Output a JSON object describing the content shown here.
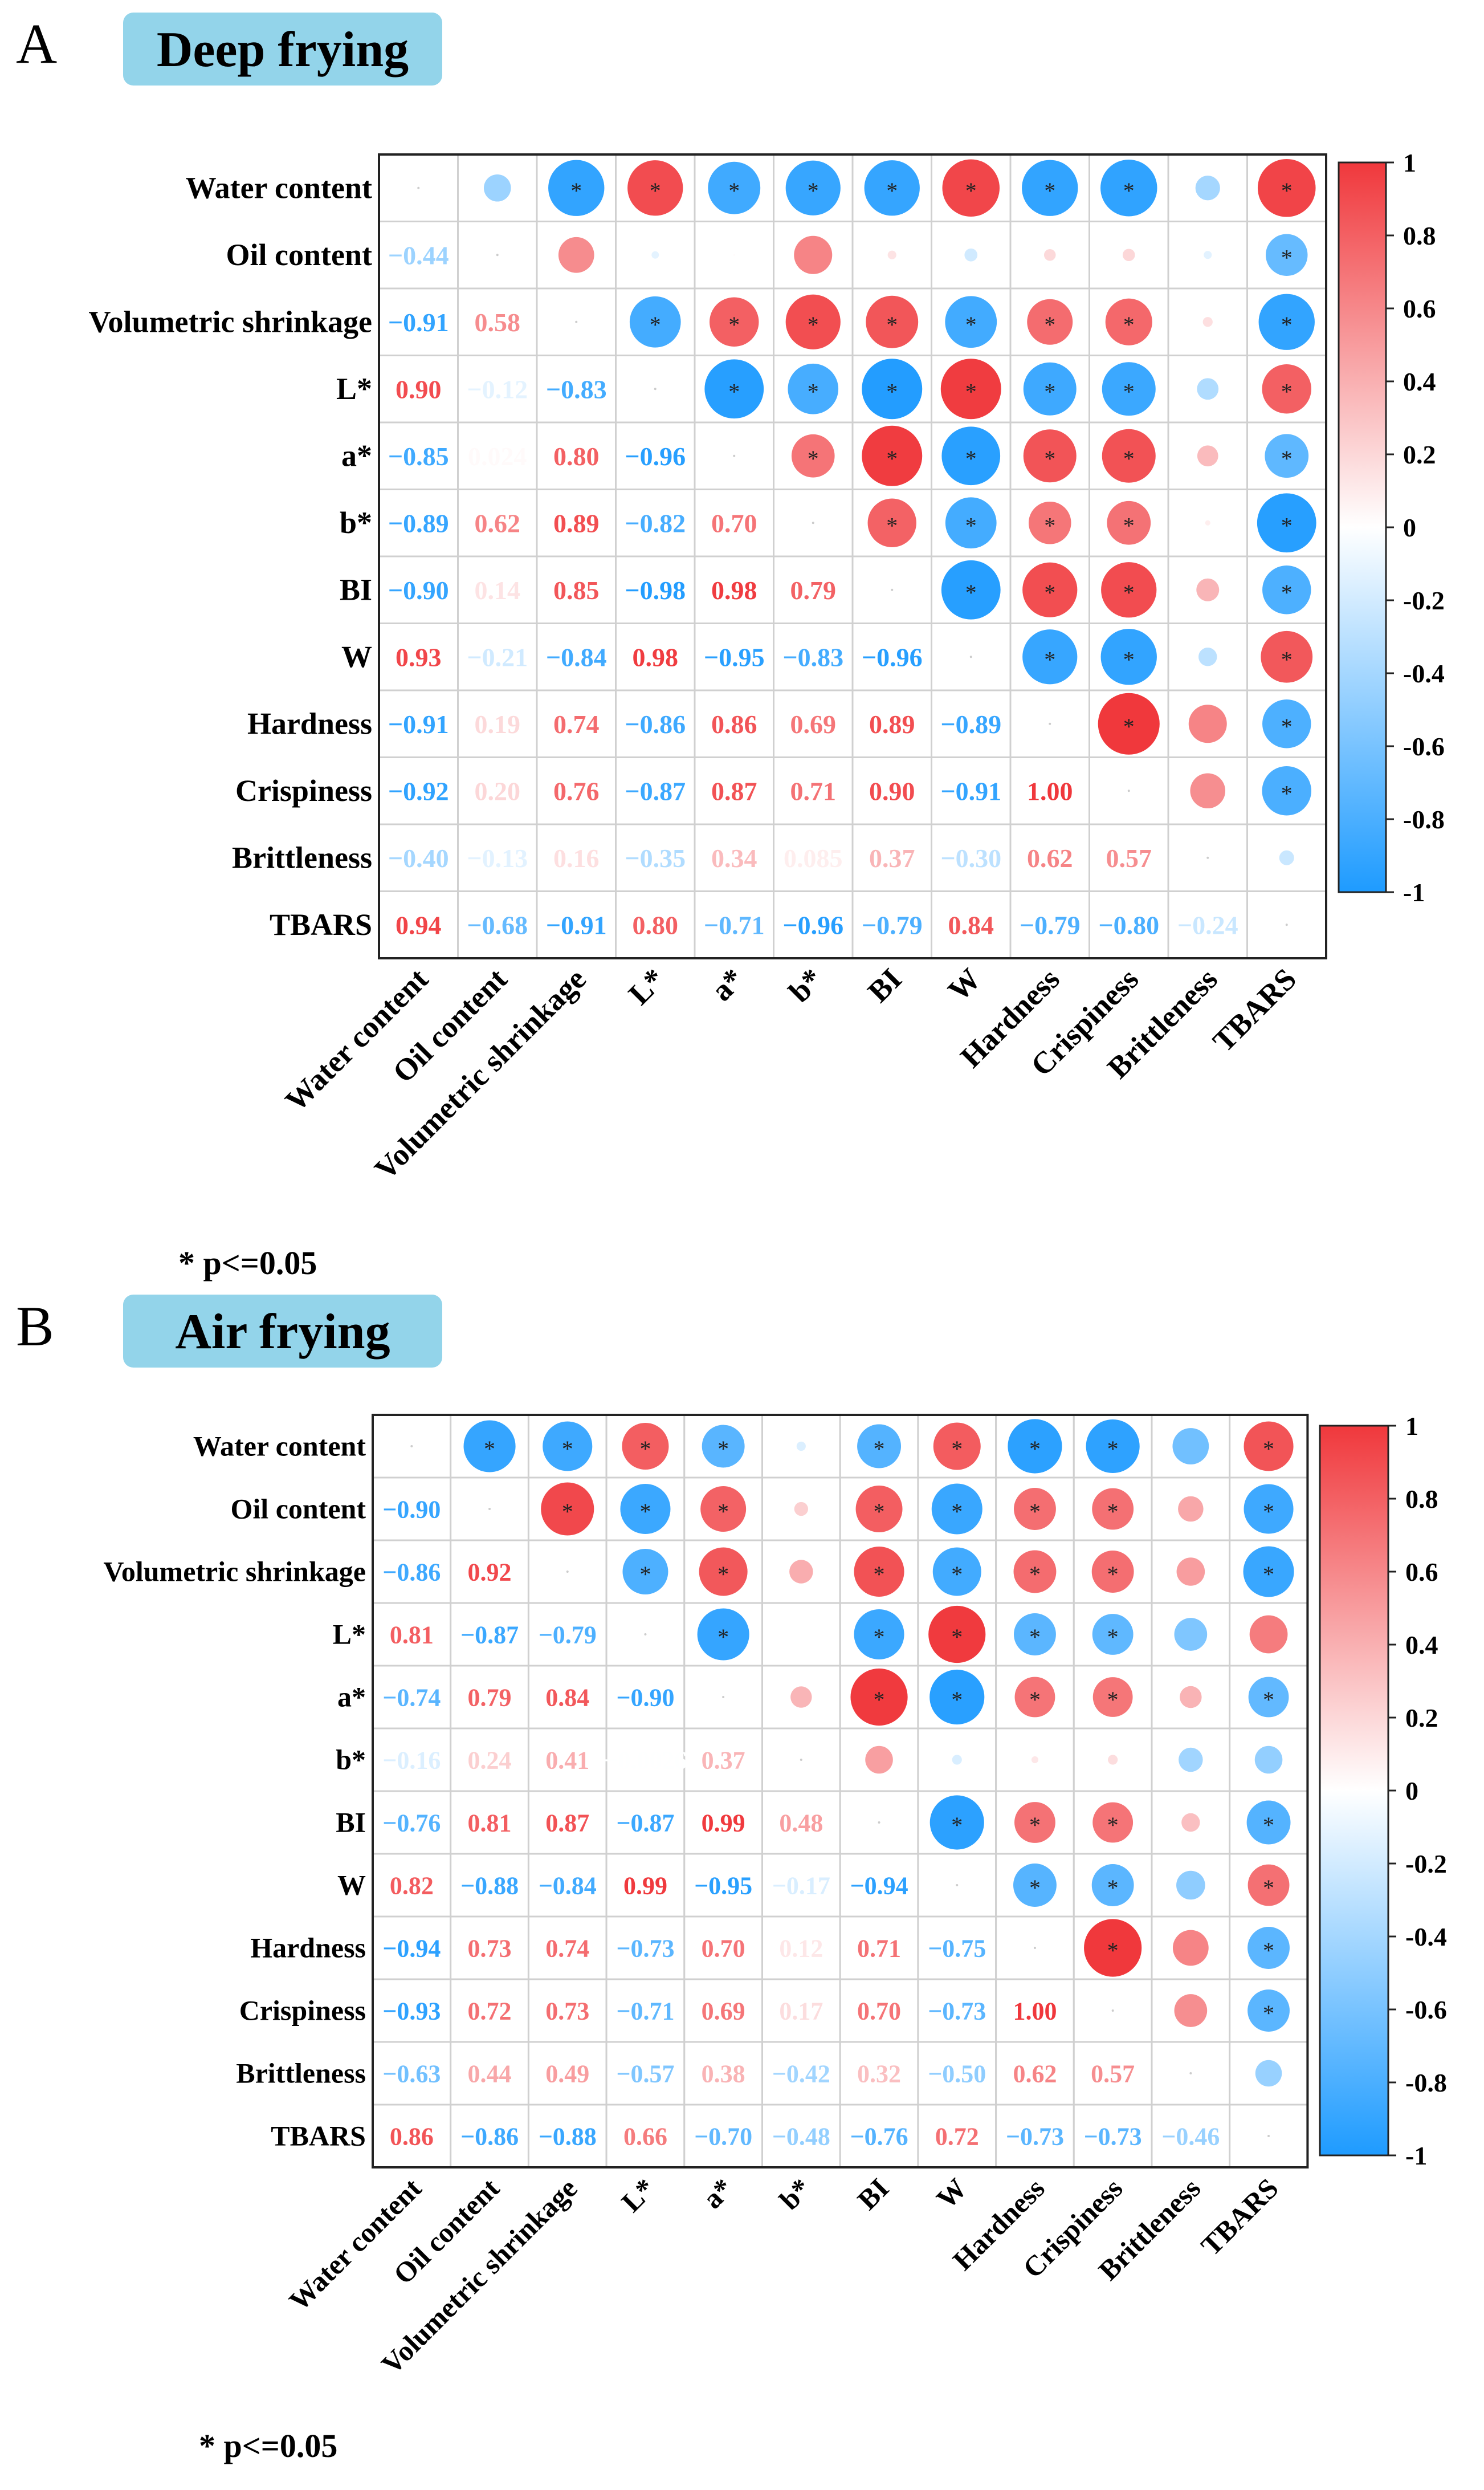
{
  "chart_data": [
    {
      "type": "heatmap",
      "panel_letter": "A",
      "title": "Deep frying",
      "footnote": "* p<=0.05",
      "variables": [
        "Water content",
        "Oil content",
        "Volumetric shrinkage",
        "L*",
        "a*",
        "b*",
        "BI",
        "W",
        "Hardness",
        "Crispiness",
        "Brittleness",
        "TBARS"
      ],
      "lower_triangle": [
        [],
        [
          -0.44
        ],
        [
          -0.91,
          0.58
        ],
        [
          0.9,
          -0.12,
          -0.83
        ],
        [
          -0.85,
          0.024,
          0.8,
          -0.96
        ],
        [
          -0.89,
          0.62,
          0.89,
          -0.82,
          0.7
        ],
        [
          -0.9,
          0.14,
          0.85,
          -0.98,
          0.98,
          0.79
        ],
        [
          0.93,
          -0.21,
          -0.84,
          0.98,
          -0.95,
          -0.83,
          -0.96
        ],
        [
          -0.91,
          0.19,
          0.74,
          -0.86,
          0.86,
          0.69,
          0.89,
          -0.89
        ],
        [
          -0.92,
          0.2,
          0.76,
          -0.87,
          0.87,
          0.71,
          0.9,
          -0.91,
          1.0
        ],
        [
          -0.4,
          -0.13,
          0.16,
          -0.35,
          0.34,
          0.085,
          0.37,
          -0.3,
          0.62,
          0.57
        ],
        [
          0.94,
          -0.68,
          -0.91,
          0.8,
          -0.71,
          -0.96,
          -0.79,
          0.84,
          -0.79,
          -0.8,
          -0.24
        ]
      ],
      "labels_text": [
        [],
        [
          "−0.44"
        ],
        [
          "−0.91",
          "0.58"
        ],
        [
          "0.90",
          "−0.12",
          "−0.83"
        ],
        [
          "−0.85",
          "0.024",
          "0.80",
          "−0.96"
        ],
        [
          "−0.89",
          "0.62",
          "0.89",
          "−0.82",
          "0.70"
        ],
        [
          "−0.90",
          "0.14",
          "0.85",
          "−0.98",
          "0.98",
          "0.79"
        ],
        [
          "0.93",
          "−0.21",
          "−0.84",
          "0.98",
          "−0.95",
          "−0.83",
          "−0.96"
        ],
        [
          "−0.91",
          "0.19",
          "0.74",
          "−0.86",
          "0.86",
          "0.69",
          "0.89",
          "−0.89"
        ],
        [
          "−0.92",
          "0.20",
          "0.76",
          "−0.87",
          "0.87",
          "0.71",
          "0.90",
          "−0.91",
          "1.00"
        ],
        [
          "−0.40",
          "−0.13",
          "0.16",
          "−0.35",
          "0.34",
          "0.085",
          "0.37",
          "−0.30",
          "0.62",
          "0.57"
        ],
        [
          "0.94",
          "−0.68",
          "−0.91",
          "0.80",
          "−0.71",
          "−0.96",
          "−0.79",
          "0.84",
          "−0.79",
          "−0.80",
          "−0.24"
        ]
      ],
      "significance_marker": "*",
      "colorbar": {
        "range": [
          -1,
          1
        ],
        "ticks": [
          "1",
          "0.8",
          "0.6",
          "0.4",
          "0.2",
          "0",
          "-0.2",
          "-0.4",
          "-0.6",
          "-0.8",
          "-1"
        ]
      }
    },
    {
      "type": "heatmap",
      "panel_letter": "B",
      "title": "Air frying",
      "footnote": "* p<=0.05",
      "variables": [
        "Water content",
        "Oil content",
        "Volumetric shrinkage",
        "L*",
        "a*",
        "b*",
        "BI",
        "W",
        "Hardness",
        "Crispiness",
        "Brittleness",
        "TBARS"
      ],
      "lower_triangle": [
        [],
        [
          -0.9
        ],
        [
          -0.86,
          0.92
        ],
        [
          0.81,
          -0.87,
          -0.79
        ],
        [
          -0.74,
          0.79,
          0.84,
          -0.9
        ],
        [
          -0.16,
          0.24,
          0.41,
          -0.0026,
          0.37
        ],
        [
          -0.76,
          0.81,
          0.87,
          -0.87,
          0.99,
          0.48
        ],
        [
          0.82,
          -0.88,
          -0.84,
          0.99,
          -0.95,
          -0.17,
          -0.94
        ],
        [
          -0.94,
          0.73,
          0.74,
          -0.73,
          0.7,
          0.12,
          0.71,
          -0.75
        ],
        [
          -0.93,
          0.72,
          0.73,
          -0.71,
          0.69,
          0.17,
          0.7,
          -0.73,
          1.0
        ],
        [
          -0.63,
          0.44,
          0.49,
          -0.57,
          0.38,
          -0.42,
          0.32,
          -0.5,
          0.62,
          0.57
        ],
        [
          0.86,
          -0.86,
          -0.88,
          0.66,
          -0.7,
          -0.48,
          -0.76,
          0.72,
          -0.73,
          -0.73,
          -0.46
        ]
      ],
      "labels_text": [
        [],
        [
          "−0.90"
        ],
        [
          "−0.86",
          "0.92"
        ],
        [
          "0.81",
          "−0.87",
          "−0.79"
        ],
        [
          "−0.74",
          "0.79",
          "0.84",
          "−0.90"
        ],
        [
          "−0.16",
          "0.24",
          "0.41",
          "−0.0026",
          "0.37"
        ],
        [
          "−0.76",
          "0.81",
          "0.87",
          "−0.87",
          "0.99",
          "0.48"
        ],
        [
          "0.82",
          "−0.88",
          "−0.84",
          "0.99",
          "−0.95",
          "−0.17",
          "−0.94"
        ],
        [
          "−0.94",
          "0.73",
          "0.74",
          "−0.73",
          "0.70",
          "0.12",
          "0.71",
          "−0.75"
        ],
        [
          "−0.93",
          "0.72",
          "0.73",
          "−0.71",
          "0.69",
          "0.17",
          "0.70",
          "−0.73",
          "1.00"
        ],
        [
          "−0.63",
          "0.44",
          "0.49",
          "−0.57",
          "0.38",
          "−0.42",
          "0.32",
          "−0.50",
          "0.62",
          "0.57"
        ],
        [
          "0.86",
          "−0.86",
          "−0.88",
          "0.66",
          "−0.70",
          "−0.48",
          "−0.76",
          "0.72",
          "−0.73",
          "−0.73",
          "−0.46"
        ]
      ],
      "significance_marker": "*",
      "colorbar": {
        "range": [
          -1,
          1
        ],
        "ticks": [
          "1",
          "0.8",
          "0.6",
          "0.4",
          "0.2",
          "0",
          "-0.2",
          "-0.4",
          "-0.6",
          "-0.8",
          "-1"
        ]
      }
    }
  ],
  "colors": {
    "negative": "#1e9bff",
    "zero": "#ffffff",
    "positive": "#f0383c",
    "title_box": "#93d4ea"
  }
}
